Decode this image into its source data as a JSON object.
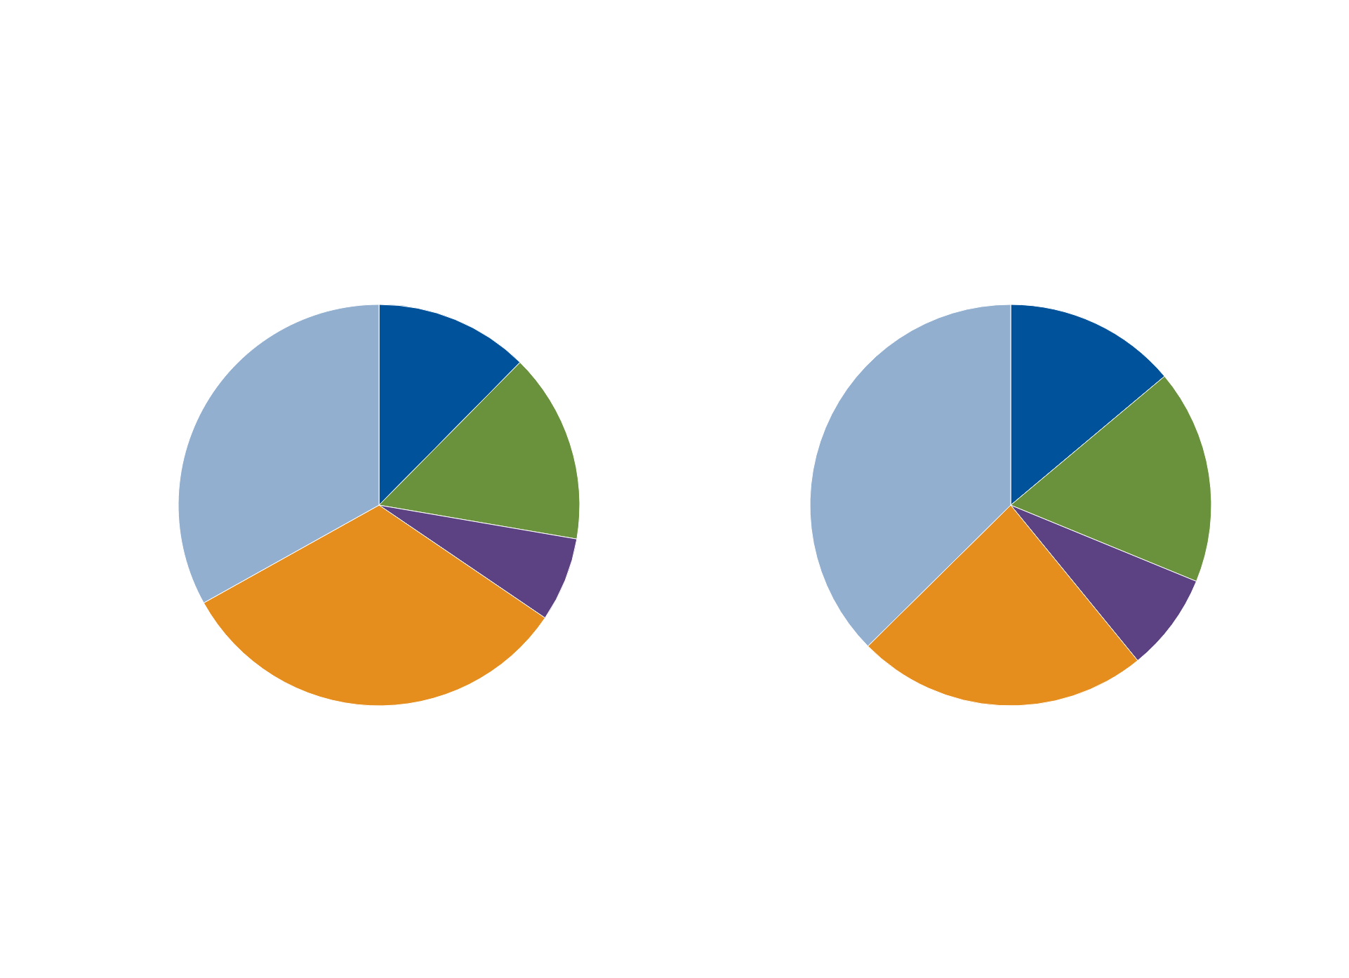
{
  "chart_data": [
    {
      "type": "pie",
      "categories": [
        null,
        null,
        null,
        null,
        null
      ],
      "values": [
        12.4,
        15.3,
        6.8,
        32.4,
        33.1
      ],
      "colors": [
        "#00529b",
        "#6a913b",
        "#5c4283",
        "#e68e1d",
        "#92afcf"
      ]
    },
    {
      "type": "pie",
      "categories": [
        null,
        null,
        null,
        null,
        null
      ],
      "values": [
        13.9,
        17.3,
        7.9,
        23.5,
        37.4
      ],
      "colors": [
        "#00529b",
        "#6a913b",
        "#5c4283",
        "#e68e1d",
        "#92afcf"
      ]
    }
  ]
}
